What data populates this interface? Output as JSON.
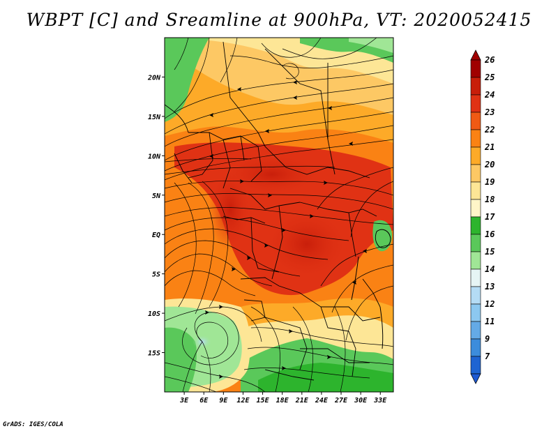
{
  "title": "WBPT [C] and Sreamline at 900hPa, VT: 2020052415",
  "credit": "GrADS: IGES/COLA",
  "map": {
    "lon_range": [
      0,
      35
    ],
    "lat_range": [
      -20,
      25
    ],
    "x_ticks": [
      {
        "value": 3,
        "label": "3E"
      },
      {
        "value": 6,
        "label": "6E"
      },
      {
        "value": 9,
        "label": "9E"
      },
      {
        "value": 12,
        "label": "12E"
      },
      {
        "value": 15,
        "label": "15E"
      },
      {
        "value": 18,
        "label": "18E"
      },
      {
        "value": 21,
        "label": "21E"
      },
      {
        "value": 24,
        "label": "24E"
      },
      {
        "value": 27,
        "label": "27E"
      },
      {
        "value": 30,
        "label": "30E"
      },
      {
        "value": 33,
        "label": "33E"
      }
    ],
    "y_ticks": [
      {
        "value": 20,
        "label": "20N"
      },
      {
        "value": 15,
        "label": "15N"
      },
      {
        "value": 10,
        "label": "10N"
      },
      {
        "value": 5,
        "label": "5N"
      },
      {
        "value": 0,
        "label": "EQ"
      },
      {
        "value": -5,
        "label": "5S"
      },
      {
        "value": -10,
        "label": "10S"
      },
      {
        "value": -15,
        "label": "15S"
      }
    ]
  },
  "colorbar": {
    "levels": [
      {
        "label": "26",
        "color": "#a00000"
      },
      {
        "label": "25",
        "color": "#c81e0a"
      },
      {
        "label": "24",
        "color": "#e03214"
      },
      {
        "label": "23",
        "color": "#f05a14"
      },
      {
        "label": "22",
        "color": "#fa8214"
      },
      {
        "label": "21",
        "color": "#fdaa28"
      },
      {
        "label": "20",
        "color": "#fdc864"
      },
      {
        "label": "19",
        "color": "#fde696"
      },
      {
        "label": "18",
        "color": "#fff5c8"
      },
      {
        "label": "17",
        "color": "#2db42d"
      },
      {
        "label": "16",
        "color": "#5ac85a"
      },
      {
        "label": "15",
        "color": "#a0e696"
      },
      {
        "label": "14",
        "color": "#e6f5f5"
      },
      {
        "label": "13",
        "color": "#b4dcf5"
      },
      {
        "label": "12",
        "color": "#8cc8f0"
      },
      {
        "label": "11",
        "color": "#64aae6"
      },
      {
        "label": "9",
        "color": "#3c8cdc"
      },
      {
        "label": "7",
        "color": "#1e64d2"
      }
    ],
    "bottom_color": "#1e5ad2"
  }
}
